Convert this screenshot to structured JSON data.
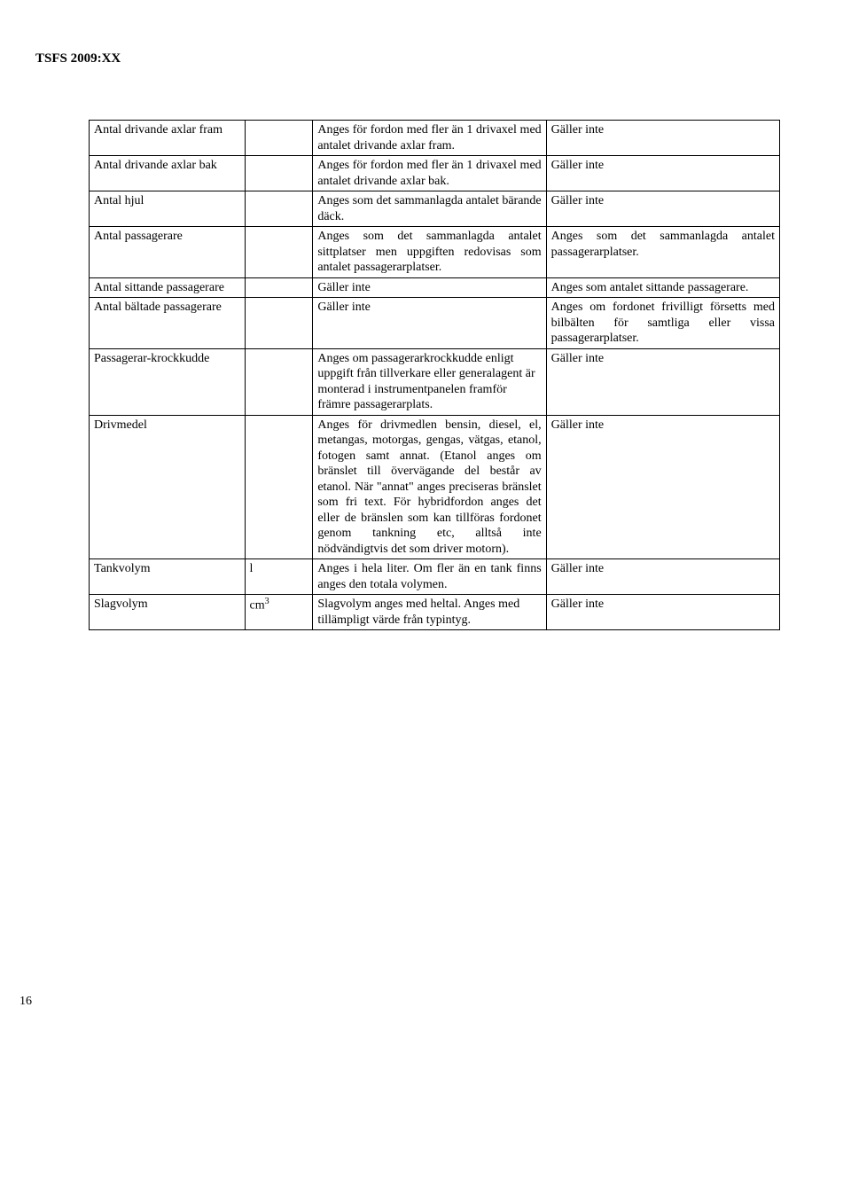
{
  "header": "TSFS 2009:XX",
  "page_number": "16",
  "table": {
    "columns": [
      "c1",
      "c2",
      "c3",
      "c4"
    ],
    "rows": [
      {
        "c1": "Antal drivande axlar fram",
        "c2": "",
        "c3": "Anges för fordon med fler än 1 drivaxel med antalet drivande axlar fram.",
        "c3_justify": true,
        "c4": "Gäller inte"
      },
      {
        "c1": "Antal drivande axlar bak",
        "c2": "",
        "c3": "Anges för fordon med fler än 1 drivaxel med antalet drivande axlar bak.",
        "c3_justify": true,
        "c4": "Gäller inte"
      },
      {
        "c1": "Antal hjul",
        "c2": "",
        "c3": "Anges som det sammanlagda antalet bärande däck.",
        "c4": "Gäller inte"
      },
      {
        "c1": "Antal passagerare",
        "c2": "",
        "c3": "Anges som det sammanlagda antalet sittplatser men uppgiften redovisas som antalet passagerarplatser.",
        "c3_justify": true,
        "c4": "Anges som det sammanlagda antalet passagerarplatser.",
        "c4_justify": true
      },
      {
        "c1": "Antal sittande passagerare",
        "c2": "",
        "c3": "Gäller inte",
        "c4": "Anges som antalet sittande passagerare."
      },
      {
        "c1": "Antal bältade passagerare",
        "c2": "",
        "c3": "Gäller inte",
        "c4": "Anges om fordonet frivilligt försetts med bilbälten för samtliga eller vissa passagerarplatser.",
        "c4_justify": true
      },
      {
        "c1": "Passagerar-krockkudde",
        "c2": "",
        "c3": "Anges om passagerarkrockkudde enligt uppgift från tillverkare eller generalagent är monterad i instrumentpanelen framför främre passagerarplats.",
        "c4": "Gäller inte"
      },
      {
        "c1": "Drivmedel",
        "c2": "",
        "c3": "Anges för drivmedlen bensin, diesel, el, metangas, motorgas, gengas, vätgas, etanol, fotogen samt annat. (Etanol anges om bränslet till övervägande del består av etanol. När \"annat\" anges preciseras bränslet som fri text. För hybridfordon anges det eller de bränslen som kan tillföras fordonet genom tankning etc, alltså inte nödvändigtvis det som driver motorn).",
        "c3_justify": true,
        "c4": "Gäller inte"
      },
      {
        "c1": "Tankvolym",
        "c2": "l",
        "c3": "Anges i hela liter. Om fler än en tank finns anges den totala volymen.",
        "c3_justify": true,
        "c4": "Gäller inte"
      },
      {
        "c1": "Slagvolym",
        "c2_html": "cm<sup>3</sup>",
        "c3": "Slagvolym anges med heltal. Anges med tillämpligt värde från typintyg.",
        "c4": "Gäller inte"
      }
    ]
  }
}
